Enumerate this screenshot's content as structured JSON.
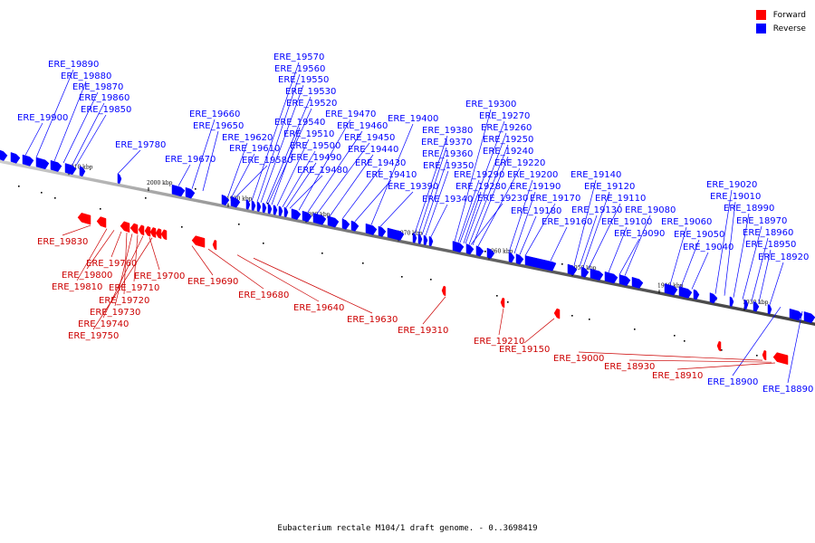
{
  "legend": {
    "forward": {
      "label": "Forward",
      "color": "#ff0000"
    },
    "reverse": {
      "label": "Reverse",
      "color": "#0000ff"
    }
  },
  "caption": "Eubacterium rectale M104/1 draft genome. - 0..3698419",
  "ticks": [
    "2010 kbp",
    "2000 kbp",
    "1990 kbp",
    "1980 kbp",
    "1970 kbp",
    "1960 kbp",
    "1950 kbp",
    "1940 kbp",
    "1930 kbp"
  ],
  "reverse_genes": [
    "ERE_19890",
    "ERE_19880",
    "ERE_19870",
    "ERE_19860",
    "ERE_19850",
    "ERE_19900",
    "ERE_19780",
    "ERE_19670",
    "ERE_19660",
    "ERE_19650",
    "ERE_19620",
    "ERE_19610",
    "ERE_19580",
    "ERE_19570",
    "ERE_19560",
    "ERE_19550",
    "ERE_19530",
    "ERE_19520",
    "ERE_19540",
    "ERE_19510",
    "ERE_19500",
    "ERE_19490",
    "ERE_19480",
    "ERE_19470",
    "ERE_19460",
    "ERE_19450",
    "ERE_19440",
    "ERE_19430",
    "ERE_19410",
    "ERE_19400",
    "ERE_19390",
    "ERE_19380",
    "ERE_19370",
    "ERE_19360",
    "ERE_19350",
    "ERE_19340",
    "ERE_19300",
    "ERE_19270",
    "ERE_19260",
    "ERE_19250",
    "ERE_19240",
    "ERE_19220",
    "ERE_19290",
    "ERE_19280",
    "ERE_19230",
    "ERE_19200",
    "ERE_19190",
    "ERE_19180",
    "ERE_19170",
    "ERE_19160",
    "ERE_19140",
    "ERE_19120",
    "ERE_19110",
    "ERE_19130",
    "ERE_19100",
    "ERE_19080",
    "ERE_19090",
    "ERE_19060",
    "ERE_19050",
    "ERE_19040",
    "ERE_19020",
    "ERE_19010",
    "ERE_18990",
    "ERE_18970",
    "ERE_18960",
    "ERE_18950",
    "ERE_18920",
    "ERE_18900",
    "ERE_18890"
  ],
  "forward_genes": [
    "ERE_19830",
    "ERE_19760",
    "ERE_19800",
    "ERE_19810",
    "ERE_19710",
    "ERE_19700",
    "ERE_19720",
    "ERE_19730",
    "ERE_19740",
    "ERE_19750",
    "ERE_19690",
    "ERE_19680",
    "ERE_19640",
    "ERE_19630",
    "ERE_19310",
    "ERE_19210",
    "ERE_19150",
    "ERE_19000",
    "ERE_18930",
    "ERE_18910"
  ]
}
